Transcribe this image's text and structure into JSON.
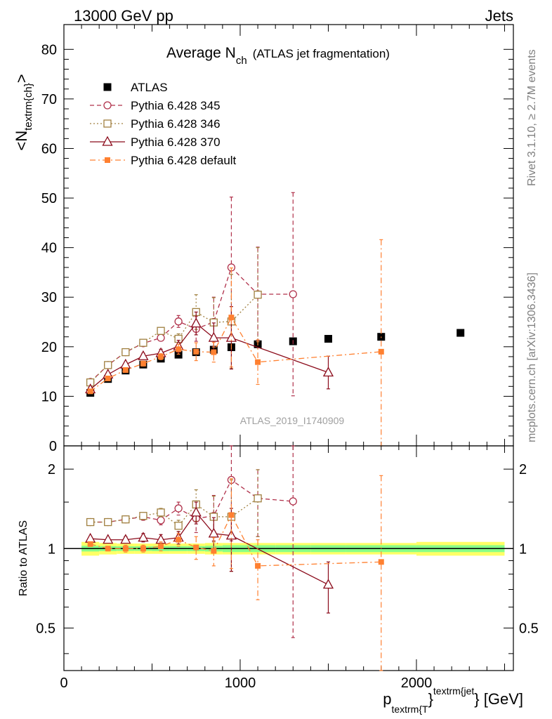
{
  "header": {
    "left": "13000 GeV pp",
    "right": "Jets"
  },
  "plot_title": {
    "main": "Average N",
    "sub": "ch",
    "suffix": "(ATLAS jet fragmentation)"
  },
  "ylabel_main": "<N",
  "ylabel_sub": "textrm{ch}",
  "ylabel_close": ">",
  "ylabel_ratio": "Ratio to ATLAS",
  "xlabel": {
    "p": "p",
    "sub": "textrm{T",
    "mid": "}",
    "sup": "textrm{jet",
    "end": "} [GeV]"
  },
  "side_text_top": "Rivet 3.1.10, ≥ 2.7M events",
  "side_text_bottom": "mcplots.cern.ch [arXiv:1306.3436]",
  "watermark": "ATLAS_2019_I1740909",
  "colors": {
    "ATLAS": "#000000",
    "p345": "#b0304a",
    "p346": "#a08040",
    "p370": "#8b0a1a",
    "pdef": "#ff8030",
    "band_inner": "#88ff88",
    "band_outer": "#ffff66"
  },
  "chart_data": [
    {
      "type": "scatter",
      "panel": "main",
      "ylim": [
        0,
        85
      ],
      "xlim": [
        0,
        2550
      ],
      "yticks": [
        "0",
        "10",
        "20",
        "30",
        "40",
        "50",
        "60",
        "70",
        "80"
      ],
      "xticks": [],
      "series": [
        {
          "name": "ATLAS",
          "key": "ATLAS",
          "marker": "filled-square",
          "x": [
            150,
            250,
            350,
            450,
            550,
            650,
            750,
            850,
            950,
            1100,
            1300,
            1500,
            1800,
            2250
          ],
          "y": [
            10.7,
            13.5,
            15.2,
            16.4,
            17.6,
            18.4,
            18.9,
            19.4,
            19.9,
            20.5,
            21.1,
            21.6,
            22.0,
            22.8
          ],
          "err": [
            0.3,
            0.3,
            0.3,
            0.3,
            0.4,
            0.4,
            0.4,
            0.5,
            0.6,
            0.6,
            0.6,
            0.6,
            0.6,
            0.6
          ]
        },
        {
          "name": "Pythia 6.428 345",
          "key": "p345",
          "marker": "open-circle",
          "line": "dashed",
          "x": [
            150,
            250,
            350,
            450,
            550,
            650,
            750,
            850,
            950,
            1100,
            1300
          ],
          "y": [
            12.9,
            16.3,
            18.9,
            20.7,
            21.8,
            25.1,
            23.6,
            25.0,
            36.0,
            30.6,
            30.6
          ],
          "err": [
            0.3,
            0.3,
            0.4,
            0.5,
            0.6,
            1.2,
            2.5,
            5.0,
            14.2,
            9.5,
            20.5
          ]
        },
        {
          "name": "Pythia 6.428 346",
          "key": "p346",
          "marker": "open-square",
          "line": "dotted",
          "x": [
            150,
            250,
            350,
            450,
            550,
            650,
            750,
            850,
            950,
            1100
          ],
          "y": [
            12.8,
            16.3,
            18.9,
            20.8,
            23.2,
            21.6,
            27.0,
            24.9,
            25.1,
            30.5
          ],
          "err": [
            0.3,
            0.3,
            0.4,
            0.5,
            0.6,
            1.0,
            3.5,
            5.0,
            9.5,
            9.5
          ]
        },
        {
          "name": "Pythia 6.428 370",
          "key": "p370",
          "marker": "open-triangle",
          "line": "solid",
          "x": [
            150,
            250,
            350,
            450,
            550,
            650,
            750,
            850,
            950,
            1500
          ],
          "y": [
            11.4,
            14.4,
            16.4,
            18.1,
            18.7,
            20.1,
            24.7,
            21.8,
            21.8,
            14.8
          ],
          "err": [
            0.3,
            0.3,
            0.4,
            0.6,
            0.8,
            1.2,
            2.3,
            3.0,
            6.3,
            3.3
          ]
        },
        {
          "name": "Pythia 6.428 default",
          "key": "pdef",
          "marker": "filled-square-small",
          "line": "dashdot",
          "x": [
            150,
            250,
            350,
            450,
            550,
            650,
            750,
            850,
            950,
            1100,
            1800
          ],
          "y": [
            11.0,
            13.6,
            15.3,
            16.6,
            18.0,
            19.5,
            19.0,
            18.9,
            25.9,
            16.9,
            19.0
          ],
          "err": [
            0.3,
            0.3,
            0.4,
            0.5,
            0.6,
            1.0,
            1.8,
            2.0,
            10.0,
            4.5,
            22.6
          ]
        }
      ]
    },
    {
      "type": "scatter",
      "panel": "ratio",
      "yscale": "log",
      "ylim": [
        0.345,
        2.45
      ],
      "xlim": [
        0,
        2550
      ],
      "yticks": [
        {
          "value": 0.5,
          "label": "0.5"
        },
        {
          "value": 1,
          "label": "1"
        },
        {
          "value": 2,
          "label": "2"
        }
      ],
      "xticks": [
        {
          "value": 0,
          "label": "0"
        },
        {
          "value": 1000,
          "label": "1000"
        },
        {
          "value": 2000,
          "label": "2000"
        }
      ],
      "reference_band": {
        "x_edges": [
          100,
          200,
          300,
          400,
          500,
          600,
          700,
          800,
          900,
          1000,
          1200,
          1400,
          1600,
          2000,
          2500
        ],
        "inner": [
          0.025,
          0.022,
          0.02,
          0.02,
          0.022,
          0.022,
          0.022,
          0.025,
          0.03,
          0.03,
          0.03,
          0.03,
          0.03,
          0.03
        ],
        "outer": [
          0.06,
          0.05,
          0.045,
          0.045,
          0.045,
          0.045,
          0.045,
          0.05,
          0.05,
          0.05,
          0.05,
          0.05,
          0.05,
          0.06
        ]
      },
      "series": [
        {
          "key": "p345",
          "x": [
            150,
            250,
            350,
            450,
            550,
            650,
            750,
            850,
            950,
            1100,
            1300
          ],
          "y": [
            1.26,
            1.26,
            1.29,
            1.32,
            1.28,
            1.42,
            1.3,
            1.33,
            1.82,
            1.55,
            1.51
          ],
          "err": [
            0.03,
            0.03,
            0.03,
            0.04,
            0.05,
            0.08,
            0.15,
            0.26,
            0.75,
            0.44,
            1.05
          ]
        },
        {
          "key": "p346",
          "x": [
            150,
            250,
            350,
            450,
            550,
            650,
            750,
            850,
            950,
            1100
          ],
          "y": [
            1.26,
            1.26,
            1.29,
            1.33,
            1.37,
            1.22,
            1.47,
            1.32,
            1.32,
            1.55
          ],
          "err": [
            0.03,
            0.03,
            0.03,
            0.04,
            0.05,
            0.06,
            0.2,
            0.26,
            0.5,
            0.44
          ]
        },
        {
          "key": "p370",
          "x": [
            150,
            250,
            350,
            450,
            550,
            650,
            750,
            850,
            950,
            1500
          ],
          "y": [
            1.09,
            1.08,
            1.08,
            1.1,
            1.08,
            1.1,
            1.37,
            1.14,
            1.12,
            0.73
          ],
          "err": [
            0.02,
            0.02,
            0.03,
            0.04,
            0.05,
            0.06,
            0.13,
            0.17,
            0.3,
            0.16
          ]
        },
        {
          "key": "pdef",
          "x": [
            150,
            250,
            350,
            450,
            550,
            650,
            750,
            850,
            950,
            1100,
            1800
          ],
          "y": [
            1.04,
            1.0,
            1.0,
            1.0,
            1.02,
            1.08,
            1.01,
            0.98,
            1.34,
            0.86,
            0.89
          ],
          "err": [
            0.02,
            0.02,
            0.03,
            0.03,
            0.04,
            0.06,
            0.1,
            0.12,
            0.5,
            0.22,
            1.0
          ]
        }
      ]
    }
  ]
}
